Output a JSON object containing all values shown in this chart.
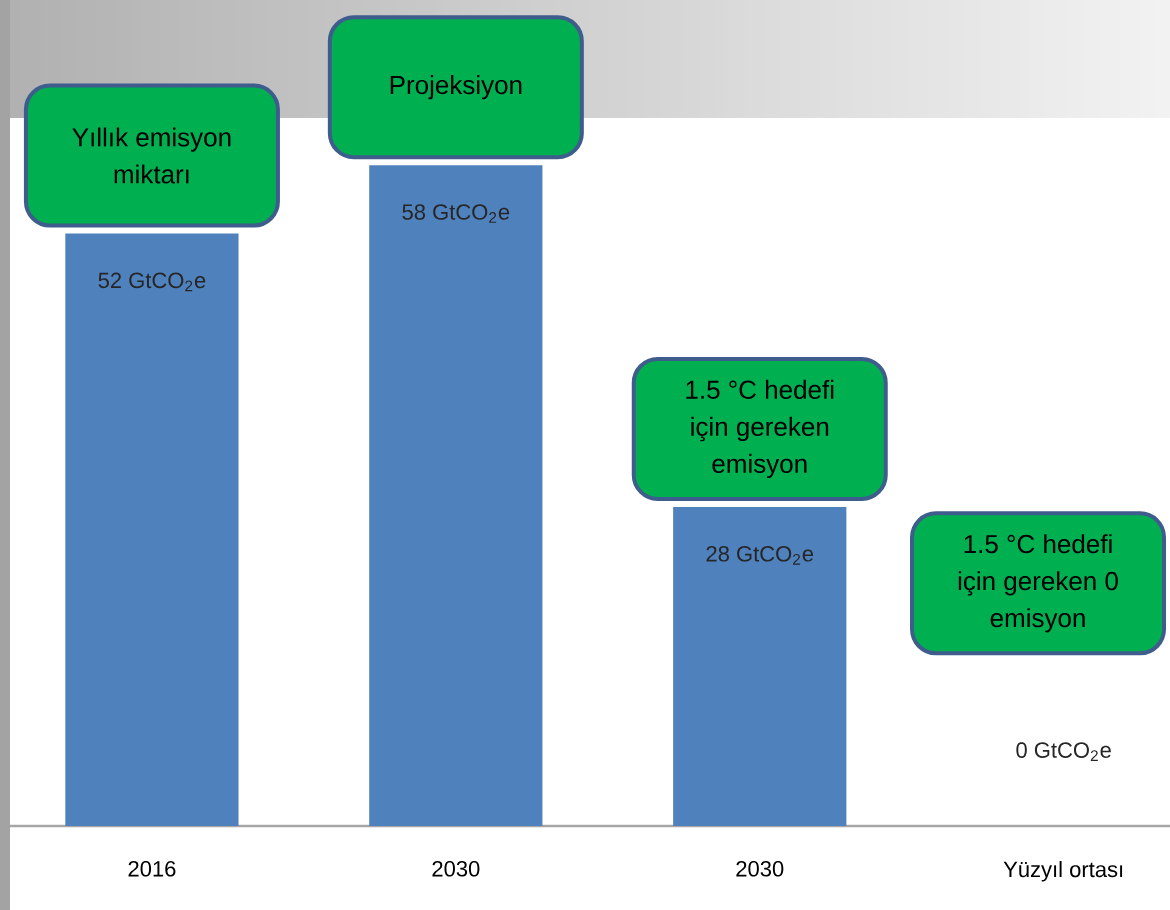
{
  "chart_data": {
    "type": "bar",
    "categories": [
      "2016",
      "2030",
      "2030",
      "Yüzyıl ortası"
    ],
    "values": [
      52,
      58,
      28,
      0
    ],
    "value_labels": [
      "52 GtCO$_{2}$e",
      "58 GtCO$_{2}$e",
      "28 GtCO$_{2}$e",
      "0 GtCO$_{2}$e"
    ],
    "color": "#4f81bd",
    "tick_labels": "x",
    "annotations": [
      "Yıllık emisyon miktarı",
      "Projeksiyon",
      "1.5 °C hedefi için gereken emisyon",
      "1.5 °C hedefi için gereken 0 emisyon"
    ]
  }
}
